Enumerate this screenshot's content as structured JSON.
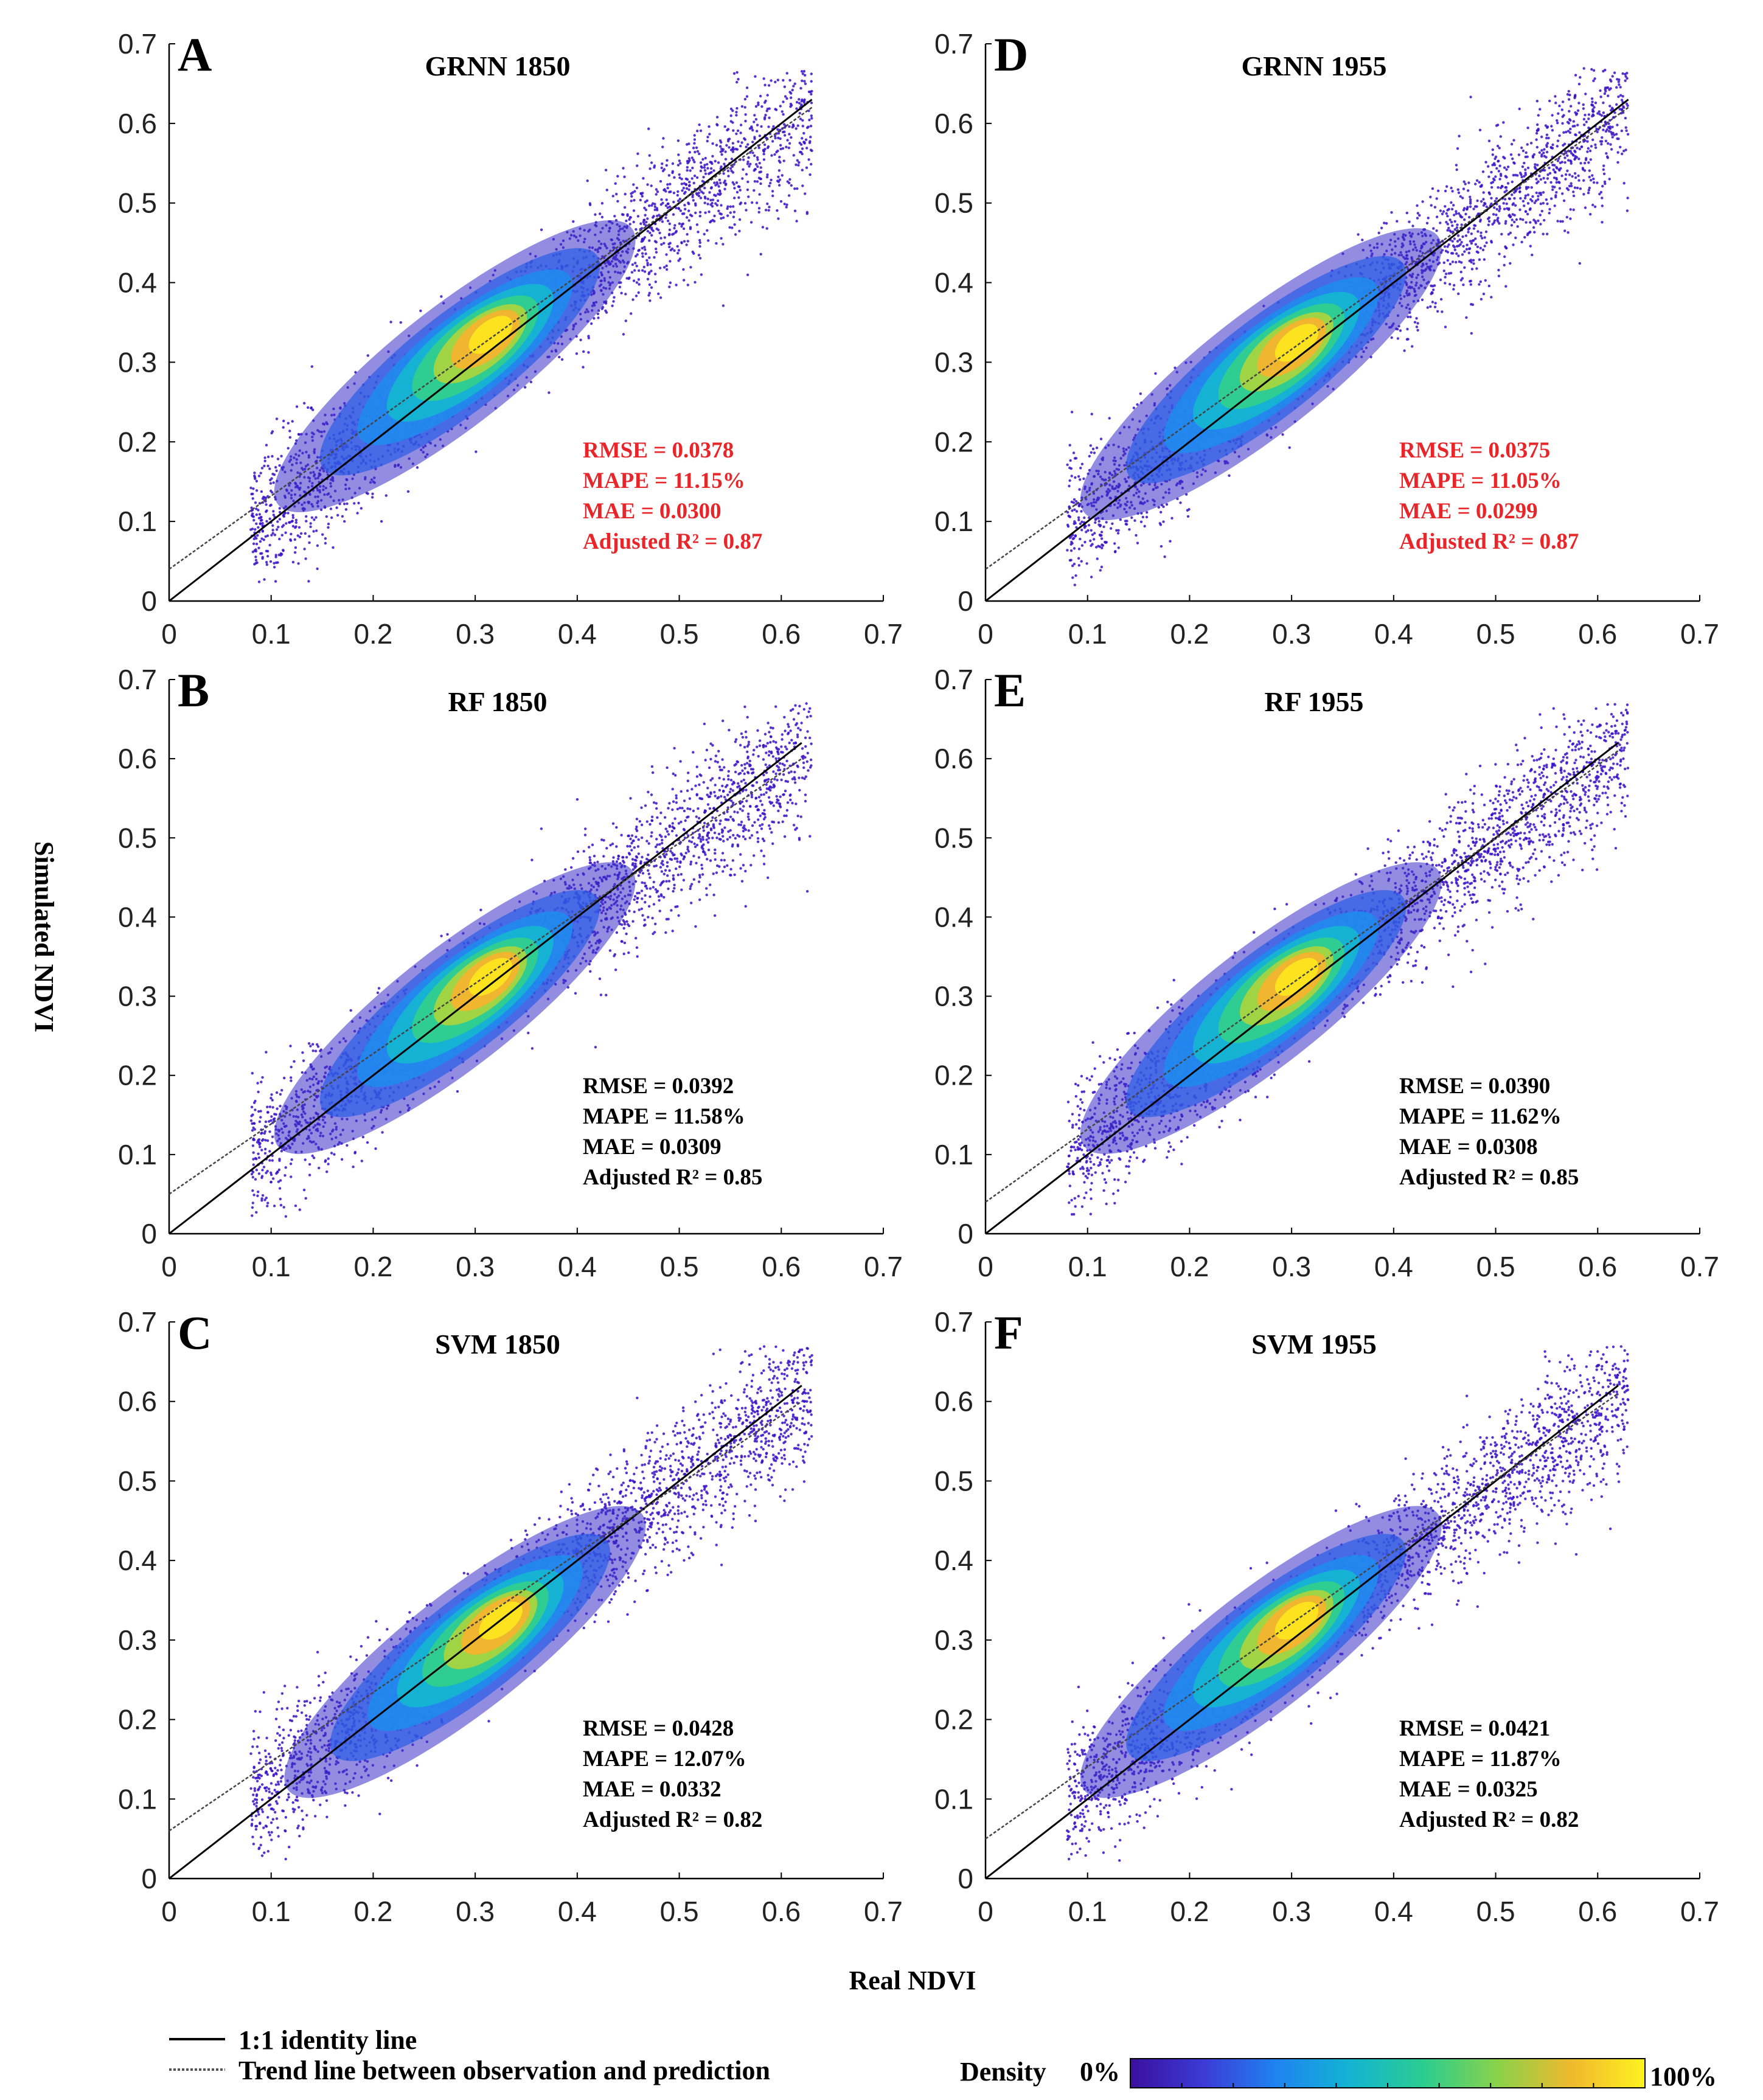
{
  "chart_data": [
    {
      "type": "scatter",
      "panel": "A",
      "title": "GRNN 1850",
      "x_ticks": [
        "0",
        "0.1",
        "0.2",
        "0.3",
        "0.4",
        "0.5",
        "0.6",
        "0.7"
      ],
      "y_ticks": [
        "0",
        "0.1",
        "0.2",
        "0.3",
        "0.4",
        "0.5",
        "0.6",
        "0.7"
      ],
      "xlim": [
        0,
        0.7
      ],
      "ylim": [
        0,
        0.7
      ],
      "identity_line": {
        "x": [
          0,
          0.63
        ],
        "y": [
          0,
          0.63
        ]
      },
      "trend_line": {
        "x": [
          0,
          0.63
        ],
        "y": [
          0.04,
          0.62
        ]
      },
      "density_peak": {
        "x": 0.32,
        "y": 0.34
      },
      "stats": {
        "rmse": "RMSE = 0.0378",
        "mape": "MAPE = 11.15%",
        "mae": "MAE = 0.0300",
        "r2": "Adjusted R² = 0.87"
      },
      "stats_color": "#e8262a"
    },
    {
      "type": "scatter",
      "panel": "B",
      "title": "RF 1850",
      "x_ticks": [
        "0",
        "0.1",
        "0.2",
        "0.3",
        "0.4",
        "0.5",
        "0.6",
        "0.7"
      ],
      "y_ticks": [
        "0",
        "0.1",
        "0.2",
        "0.3",
        "0.4",
        "0.5",
        "0.6",
        "0.7"
      ],
      "xlim": [
        0,
        0.7
      ],
      "ylim": [
        0,
        0.7
      ],
      "identity_line": {
        "x": [
          0,
          0.62
        ],
        "y": [
          0,
          0.62
        ]
      },
      "trend_line": {
        "x": [
          0,
          0.62
        ],
        "y": [
          0.05,
          0.6
        ]
      },
      "density_peak": {
        "x": 0.32,
        "y": 0.33
      },
      "stats": {
        "rmse": "RMSE = 0.0392",
        "mape": "MAPE = 11.58%",
        "mae": "MAE = 0.0309",
        "r2": "Adjusted R² = 0.85"
      },
      "stats_color": "#000000"
    },
    {
      "type": "scatter",
      "panel": "C",
      "title": "SVM 1850",
      "x_ticks": [
        "0",
        "0.1",
        "0.2",
        "0.3",
        "0.4",
        "0.5",
        "0.6",
        "0.7"
      ],
      "y_ticks": [
        "0",
        "0.1",
        "0.2",
        "0.3",
        "0.4",
        "0.5",
        "0.6",
        "0.7"
      ],
      "xlim": [
        0,
        0.7
      ],
      "ylim": [
        0,
        0.7
      ],
      "identity_line": {
        "x": [
          0,
          0.62
        ],
        "y": [
          0,
          0.62
        ]
      },
      "trend_line": {
        "x": [
          0,
          0.62
        ],
        "y": [
          0.06,
          0.6
        ]
      },
      "density_peak": {
        "x": 0.33,
        "y": 0.33
      },
      "stats": {
        "rmse": "RMSE = 0.0428",
        "mape": "MAPE = 12.07%",
        "mae": "MAE = 0.0332",
        "r2": "Adjusted R² = 0.82"
      },
      "stats_color": "#000000"
    },
    {
      "type": "scatter",
      "panel": "D",
      "title": "GRNN 1955",
      "x_ticks": [
        "0",
        "0.1",
        "0.2",
        "0.3",
        "0.4",
        "0.5",
        "0.6",
        "0.7"
      ],
      "y_ticks": [
        "0",
        "0.1",
        "0.2",
        "0.3",
        "0.4",
        "0.5",
        "0.6",
        "0.7"
      ],
      "xlim": [
        0,
        0.7
      ],
      "ylim": [
        0,
        0.7
      ],
      "identity_line": {
        "x": [
          0,
          0.63
        ],
        "y": [
          0,
          0.63
        ]
      },
      "trend_line": {
        "x": [
          0,
          0.63
        ],
        "y": [
          0.04,
          0.62
        ]
      },
      "density_peak": {
        "x": 0.31,
        "y": 0.33
      },
      "stats": {
        "rmse": "RMSE = 0.0375",
        "mape": "MAPE = 11.05%",
        "mae": "MAE = 0.0299",
        "r2": "Adjusted R² = 0.87"
      },
      "stats_color": "#e8262a"
    },
    {
      "type": "scatter",
      "panel": "E",
      "title": "RF 1955",
      "x_ticks": [
        "0",
        "0.1",
        "0.2",
        "0.3",
        "0.4",
        "0.5",
        "0.6",
        "0.7"
      ],
      "y_ticks": [
        "0",
        "0.1",
        "0.2",
        "0.3",
        "0.4",
        "0.5",
        "0.6",
        "0.7"
      ],
      "xlim": [
        0,
        0.7
      ],
      "ylim": [
        0,
        0.7
      ],
      "identity_line": {
        "x": [
          0,
          0.62
        ],
        "y": [
          0,
          0.62
        ]
      },
      "trend_line": {
        "x": [
          0,
          0.62
        ],
        "y": [
          0.04,
          0.61
        ]
      },
      "density_peak": {
        "x": 0.31,
        "y": 0.33
      },
      "stats": {
        "rmse": "RMSE = 0.0390",
        "mape": "MAPE = 11.62%",
        "mae": "MAE = 0.0308",
        "r2": "Adjusted R² = 0.85"
      },
      "stats_color": "#000000"
    },
    {
      "type": "scatter",
      "panel": "F",
      "title": "SVM 1955",
      "x_ticks": [
        "0",
        "0.1",
        "0.2",
        "0.3",
        "0.4",
        "0.5",
        "0.6",
        "0.7"
      ],
      "y_ticks": [
        "0",
        "0.1",
        "0.2",
        "0.3",
        "0.4",
        "0.5",
        "0.6",
        "0.7"
      ],
      "xlim": [
        0,
        0.7
      ],
      "ylim": [
        0,
        0.7
      ],
      "identity_line": {
        "x": [
          0,
          0.62
        ],
        "y": [
          0,
          0.62
        ]
      },
      "trend_line": {
        "x": [
          0,
          0.62
        ],
        "y": [
          0.05,
          0.61
        ]
      },
      "density_peak": {
        "x": 0.31,
        "y": 0.33
      },
      "stats": {
        "rmse": "RMSE = 0.0421",
        "mape": "MAPE = 11.87%",
        "mae": "MAE = 0.0325",
        "r2": "Adjusted R² = 0.82"
      },
      "stats_color": "#000000"
    }
  ],
  "figure": {
    "ylabel": "Simulated NDVI",
    "xlabel": "Real NDVI"
  },
  "legend": {
    "identity_label": "1:1 identity line",
    "trend_label": "Trend line between observation and prediction",
    "density_label": "Density",
    "density_min": "0%",
    "density_max": "100%",
    "colormap": [
      "#3b0f9e",
      "#3b3bd6",
      "#1f84f0",
      "#13b4d2",
      "#2ccd8e",
      "#8ad24a",
      "#f0b82e",
      "#fdf21f"
    ]
  }
}
